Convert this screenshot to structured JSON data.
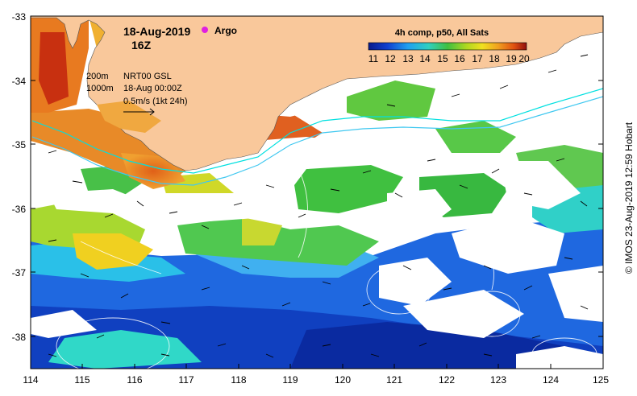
{
  "map": {
    "date": "18-Aug-2019",
    "time": "16Z",
    "argo_label": "Argo",
    "legend": {
      "depth_200": "200m",
      "depth_1000": "1000m",
      "nrt": "NRT00 GSL",
      "nrt_time": "18-Aug 00:00Z",
      "vector_scale": "0.5m/s (1kt 24h)"
    },
    "colorbar": {
      "title": "4h comp, p50, All Sats",
      "ticks": [
        "11",
        "12",
        "13",
        "14",
        "15",
        "16",
        "17",
        "18",
        "19",
        "20"
      ]
    },
    "x_axis_ticks": [
      "114",
      "115",
      "116",
      "117",
      "118",
      "119",
      "120",
      "121",
      "122",
      "123",
      "124",
      "125"
    ],
    "y_axis_ticks": [
      "-33",
      "-34",
      "-35",
      "-36",
      "-37",
      "-38"
    ],
    "credit": "© IMOS 23-Aug-2019 12:59 Hobart",
    "colors": {
      "land": "#f9c89b",
      "argo": "#e020e0",
      "contour_200": "#00e0e0",
      "contour_1000": "#40c8f0",
      "sst_cold": "#0830b0",
      "sst_warm": "#d03010"
    }
  }
}
